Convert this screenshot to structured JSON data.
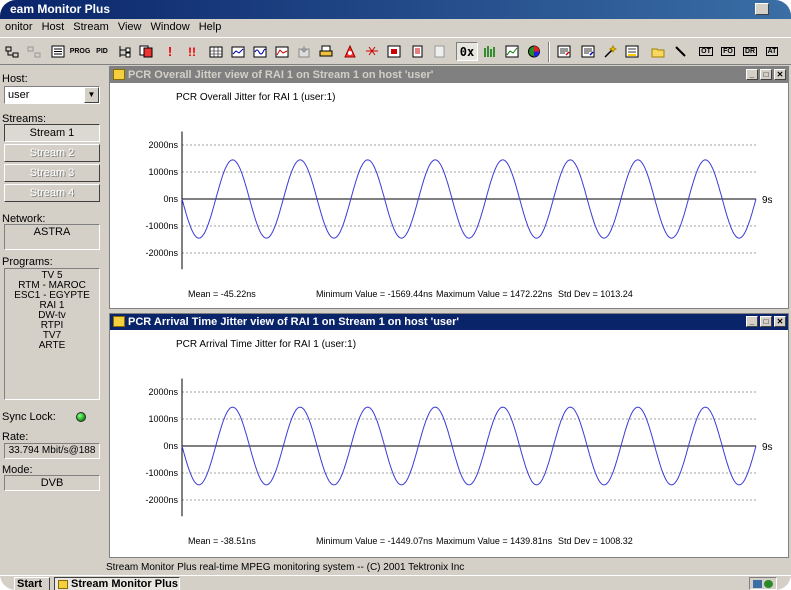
{
  "app": {
    "title": "eam Monitor Plus",
    "status": "Stream Monitor Plus real-time MPEG monitoring system -- (C) 2001 Tektronix Inc"
  },
  "menu": [
    {
      "label": "onitor"
    },
    {
      "label": "Host"
    },
    {
      "label": "Stream"
    },
    {
      "label": "View"
    },
    {
      "label": "Window"
    },
    {
      "label": "Help"
    }
  ],
  "toolbar": {
    "prog": "PROG",
    "pid": "PID",
    "alarm1": "!",
    "alarm2": "!!",
    "hex": "0x",
    "ot": "OT",
    "fo": "FO",
    "dr": "DR",
    "at": "AT"
  },
  "left_panel": {
    "host_label": "Host:",
    "host_value": "user",
    "streams_label": "Streams:",
    "streams": [
      "Stream 1",
      "Stream 2",
      "Stream 3",
      "Stream 4"
    ],
    "network_label": "Network:",
    "network_value": "ASTRA",
    "programs_label": "Programs:",
    "programs": [
      "TV 5",
      "RTM - MAROC",
      "ESC1 - EGYPTE",
      "RAI 1",
      "DW-tv",
      "RTPI",
      "TV7",
      "ARTE"
    ],
    "sync_label": "Sync Lock:",
    "rate_label": "Rate:",
    "rate_value": "33.794 Mbit/s@188",
    "mode_label": "Mode:",
    "mode_value": "DVB"
  },
  "windows": [
    {
      "title": "PCR Overall Jitter view of  RAI 1 on Stream 1 on host 'user'",
      "chart_title": "PCR Overall Jitter for  RAI 1 (user:1)",
      "stats": {
        "mean": "Mean = -45.22ns",
        "min": "Minimum Value = -1569.44ns",
        "max": "Maximum Value = 1472.22ns",
        "std": "Std Dev = 1013.24"
      }
    },
    {
      "title": "PCR Arrival Time Jitter view of  RAI 1 on Stream 1 on host 'user'",
      "chart_title": "PCR Arrival Time Jitter for  RAI 1 (user:1)",
      "stats": {
        "mean": "Mean = -38.51ns",
        "min": "Minimum Value = -1449.07ns",
        "max": "Maximum Value = 1439.81ns",
        "std": "Std Dev = 1008.32"
      }
    }
  ],
  "chart_data": [
    {
      "type": "line",
      "title": "PCR Overall Jitter for  RAI 1 (user:1)",
      "y_ticks": [
        "2000ns",
        "1000ns",
        "0ns",
        "-1000ns",
        "-2000ns"
      ],
      "x_end_label": "9s",
      "ylim": [
        -2500,
        2500
      ],
      "xlim": [
        0,
        9
      ],
      "grid": true,
      "series": [
        {
          "amplitude": 1450,
          "cycles": 8.5,
          "phase_deg": 180,
          "color": "#3b3bd6"
        }
      ]
    },
    {
      "type": "line",
      "title": "PCR Arrival Time Jitter for  RAI 1 (user:1)",
      "y_ticks": [
        "2000ns",
        "1000ns",
        "0ns",
        "-1000ns",
        "-2000ns"
      ],
      "x_end_label": "9s",
      "ylim": [
        -2500,
        2500
      ],
      "xlim": [
        0,
        9
      ],
      "grid": true,
      "series": [
        {
          "amplitude": 1440,
          "cycles": 8.5,
          "phase_deg": 180,
          "color": "#3b3bd6"
        }
      ]
    }
  ],
  "taskbar": {
    "start": "Start",
    "app": "Stream Monitor Plus"
  },
  "colors": {
    "titlebar": "#0a246a",
    "face": "#d4d0c8",
    "trace": "#3b3bd6",
    "sync_led": "#1aa81a"
  }
}
